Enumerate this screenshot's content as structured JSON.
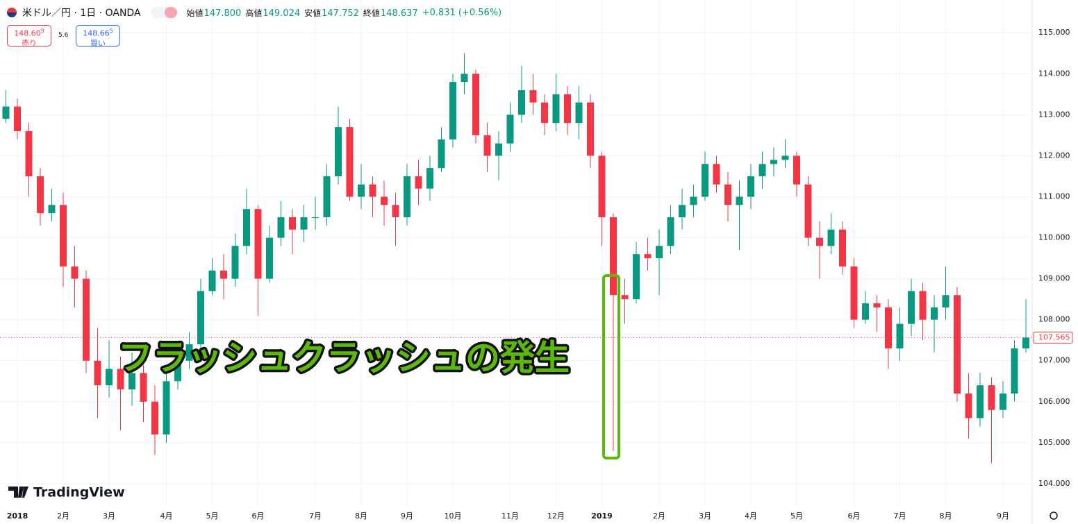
{
  "header": {
    "symbol": "米ドル／円 · 1日 · OANDA",
    "ohlc": [
      {
        "label": "始値",
        "value": "147.800"
      },
      {
        "label": "高値",
        "value": "149.024"
      },
      {
        "label": "安値",
        "value": "147.752"
      },
      {
        "label": "終値",
        "value": "148.637"
      }
    ],
    "change": "+0.831 (+0.56%)",
    "sell": {
      "price": "148.60",
      "pip": "9",
      "label": "売り"
    },
    "spread": "5.6",
    "buy": {
      "price": "148.66",
      "pip": "5",
      "label": "買い"
    }
  },
  "logo": "TradingView",
  "chart_data": {
    "type": "candlestick",
    "annotation": "フラッシュクラッシュの発生",
    "up_color": "#089981",
    "down_color": "#f23645",
    "grid": true,
    "last_price": 107.565,
    "categories": [
      null,
      "2018",
      null,
      null,
      null,
      "2月",
      null,
      null,
      null,
      "3月",
      null,
      null,
      null,
      null,
      "4月",
      null,
      null,
      null,
      "5月",
      null,
      null,
      null,
      "6月",
      null,
      null,
      null,
      null,
      "7月",
      null,
      null,
      null,
      "8月",
      null,
      null,
      null,
      "9月",
      null,
      null,
      null,
      "10月",
      null,
      null,
      null,
      null,
      "11月",
      null,
      null,
      null,
      "12月",
      null,
      null,
      null,
      "2019",
      null,
      null,
      null,
      null,
      "2月",
      null,
      null,
      null,
      "3月",
      null,
      null,
      null,
      "4月",
      null,
      null,
      null,
      "5月",
      null,
      null,
      null,
      null,
      "6月",
      null,
      null,
      null,
      "7月",
      null,
      null,
      null,
      "8月",
      null,
      null,
      null,
      null,
      "9月",
      null,
      null
    ],
    "open": [
      112.9,
      113.2,
      112.6,
      111.5,
      110.6,
      110.8,
      109.3,
      109.0,
      107.0,
      106.4,
      106.8,
      106.3,
      106.7,
      106.0,
      105.2,
      106.5,
      107.0,
      107.4,
      108.7,
      109.2,
      109.0,
      109.8,
      110.7,
      109.0,
      110.0,
      110.5,
      110.2,
      110.5,
      110.5,
      111.5,
      112.7,
      111.0,
      111.3,
      111.0,
      110.8,
      110.5,
      111.5,
      111.2,
      111.7,
      112.4,
      113.8,
      114.0,
      112.5,
      112.0,
      112.3,
      113.0,
      113.6,
      113.3,
      112.8,
      113.5,
      112.8,
      113.3,
      112.0,
      110.5,
      108.6,
      108.5,
      109.6,
      109.5,
      109.8,
      110.5,
      110.8,
      111.0,
      111.8,
      111.3,
      110.8,
      111.0,
      111.5,
      111.8,
      111.9,
      112.0,
      111.3,
      110.0,
      109.8,
      110.2,
      109.3,
      108.0,
      108.4,
      108.3,
      107.3,
      107.9,
      108.7,
      108.0,
      108.3,
      108.6,
      106.2,
      105.6,
      106.4,
      105.8,
      106.2,
      107.3
    ],
    "high": [
      113.6,
      113.4,
      112.8,
      111.7,
      111.2,
      111.1,
      109.8,
      109.2,
      107.8,
      107.5,
      107.1,
      107.2,
      106.9,
      106.4,
      106.8,
      107.3,
      107.7,
      109.0,
      109.5,
      109.6,
      110.1,
      111.2,
      110.8,
      110.3,
      110.9,
      110.7,
      110.8,
      111.0,
      111.8,
      113.2,
      112.9,
      111.8,
      111.5,
      111.4,
      111.1,
      111.8,
      111.9,
      112.0,
      112.7,
      114.0,
      114.5,
      114.1,
      112.8,
      112.6,
      113.3,
      114.2,
      114.0,
      113.5,
      114.0,
      113.7,
      113.7,
      113.5,
      112.1,
      110.6,
      109.0,
      109.9,
      110.0,
      110.2,
      110.8,
      111.2,
      111.3,
      112.1,
      112.0,
      111.6,
      111.4,
      111.8,
      112.1,
      112.2,
      112.4,
      112.1,
      111.5,
      110.4,
      110.6,
      110.4,
      109.5,
      108.7,
      108.6,
      108.5,
      108.3,
      109.0,
      108.9,
      108.6,
      109.3,
      108.8,
      106.7,
      106.7,
      106.6,
      106.5,
      107.5,
      108.5
    ],
    "low": [
      112.8,
      112.4,
      111.0,
      110.3,
      110.4,
      108.8,
      108.3,
      106.7,
      105.6,
      106.1,
      105.3,
      105.9,
      105.5,
      104.7,
      105.0,
      106.3,
      106.8,
      107.2,
      108.6,
      108.5,
      108.8,
      109.6,
      108.1,
      108.9,
      109.8,
      109.6,
      109.9,
      110.2,
      110.3,
      111.3,
      110.9,
      110.7,
      110.5,
      110.3,
      109.8,
      110.3,
      110.8,
      110.9,
      111.6,
      112.2,
      113.5,
      112.3,
      111.6,
      111.4,
      112.1,
      112.8,
      113.0,
      112.5,
      112.6,
      112.5,
      112.4,
      111.7,
      109.8,
      104.8,
      107.9,
      108.4,
      109.2,
      108.6,
      109.6,
      110.2,
      110.5,
      110.9,
      111.1,
      110.4,
      109.7,
      110.7,
      111.2,
      111.5,
      111.7,
      111.0,
      109.8,
      109.0,
      109.6,
      109.1,
      107.8,
      107.9,
      107.7,
      106.8,
      107.0,
      107.6,
      107.5,
      107.2,
      108.0,
      106.0,
      105.1,
      105.4,
      104.5,
      105.6,
      106.0,
      107.2
    ],
    "close": [
      113.2,
      112.6,
      111.5,
      110.6,
      110.8,
      109.3,
      109.0,
      107.0,
      106.4,
      106.8,
      106.3,
      106.7,
      106.0,
      105.2,
      106.5,
      107.0,
      107.4,
      108.7,
      109.2,
      109.0,
      109.8,
      110.7,
      109.0,
      110.0,
      110.5,
      110.2,
      110.5,
      110.5,
      111.5,
      112.7,
      111.0,
      111.3,
      111.0,
      110.8,
      110.5,
      111.5,
      111.2,
      111.7,
      112.4,
      113.8,
      114.0,
      112.5,
      112.0,
      112.3,
      113.0,
      113.6,
      113.3,
      112.8,
      113.5,
      112.8,
      113.3,
      112.0,
      110.5,
      108.6,
      108.5,
      109.6,
      109.5,
      109.8,
      110.5,
      110.8,
      111.0,
      111.8,
      111.3,
      110.8,
      111.0,
      111.5,
      111.8,
      111.9,
      112.0,
      111.3,
      110.0,
      109.8,
      110.2,
      109.3,
      108.0,
      108.4,
      108.3,
      107.3,
      107.9,
      108.7,
      108.0,
      108.3,
      108.6,
      106.2,
      105.6,
      106.4,
      105.8,
      106.2,
      107.3,
      107.565
    ],
    "ylim": [
      103.44,
      115.8
    ],
    "yticks": [
      {
        "value": 104,
        "label": "104.000"
      },
      {
        "value": 105,
        "label": "105.000"
      },
      {
        "value": 106,
        "label": "106.000"
      },
      {
        "value": 107,
        "label": "107.000"
      },
      {
        "value": 108,
        "label": "108.000"
      },
      {
        "value": 109,
        "label": "109.000"
      },
      {
        "value": 110,
        "label": "110.000"
      },
      {
        "value": 111,
        "label": "111.000"
      },
      {
        "value": 112,
        "label": "112.000"
      },
      {
        "value": 113,
        "label": "113.000"
      },
      {
        "value": 114,
        "label": "114.000"
      },
      {
        "value": 115,
        "label": "115.000"
      }
    ]
  }
}
